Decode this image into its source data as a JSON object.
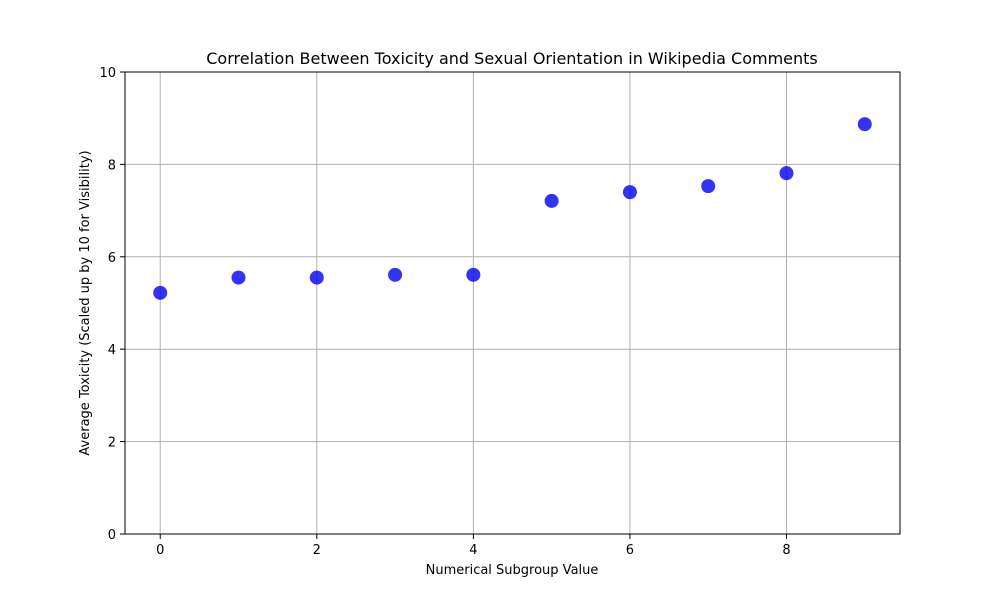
{
  "chart_data": {
    "type": "scatter",
    "title": "Correlation Between Toxicity and Sexual Orientation in Wikipedia Comments",
    "xlabel": "Numerical Subgroup Value",
    "ylabel": "Average Toxicity (Scaled up by 10 for Visibility)",
    "x": [
      0,
      1,
      2,
      3,
      4,
      5,
      6,
      7,
      8,
      9
    ],
    "y": [
      5.22,
      5.55,
      5.55,
      5.61,
      5.61,
      7.21,
      7.4,
      7.53,
      7.81,
      8.87
    ],
    "xlim": [
      -0.45,
      9.45
    ],
    "ylim": [
      0,
      10
    ],
    "xticks": [
      0,
      2,
      4,
      6,
      8
    ],
    "yticks": [
      0,
      2,
      4,
      6,
      8,
      10
    ],
    "grid": true,
    "marker_color": "#0000ee",
    "grid_color": "#b0b0b0"
  }
}
